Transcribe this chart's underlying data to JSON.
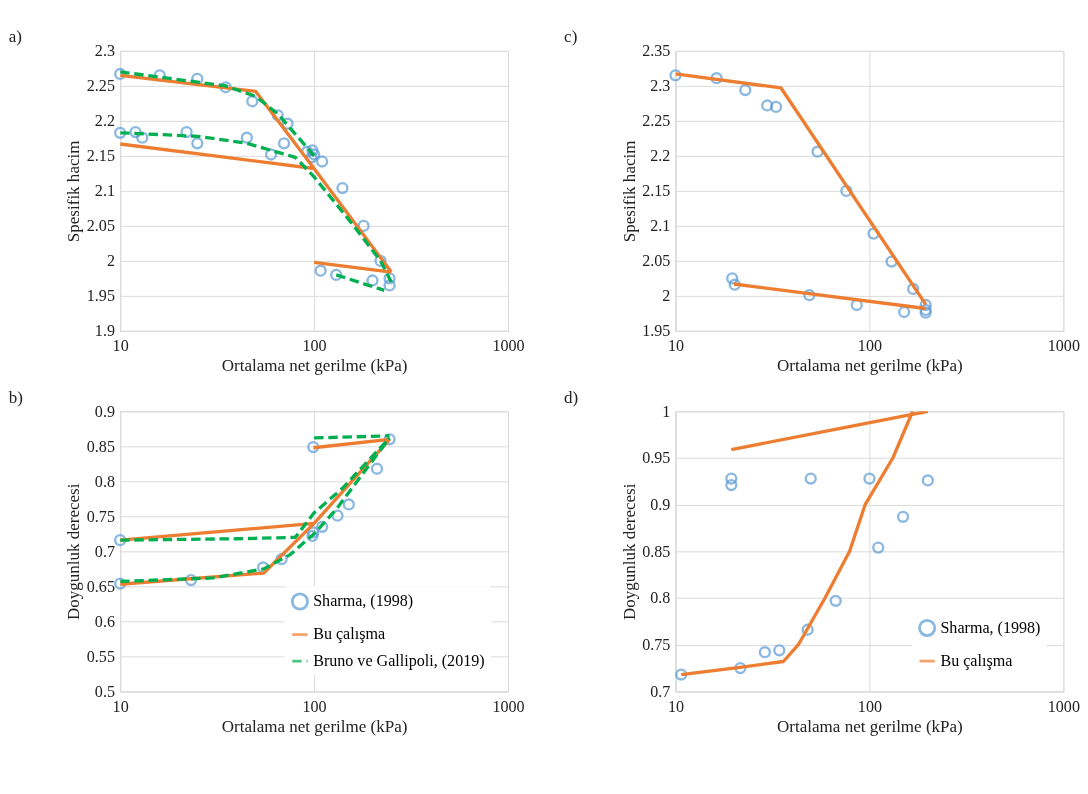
{
  "chart_data": [
    {
      "type": "scatter",
      "title": "a)",
      "xlabel": "Ortalama net gerilme (kPa)",
      "ylabel": "Spesifik hacim",
      "log": "x",
      "grid": true,
      "legend": false,
      "xlim": [
        10,
        1000
      ],
      "xticks": [
        10,
        100,
        1000
      ],
      "ylim": [
        1.9,
        2.3
      ],
      "yticks": [
        1.9,
        1.95,
        2,
        2.05,
        2.1,
        2.15,
        2.2,
        2.25,
        2.3
      ],
      "series": [
        {
          "type": "scatter",
          "marker": "circle",
          "color": "#5b9bd5",
          "x": [
            10,
            16,
            25,
            35,
            48,
            65,
            73,
            92,
            98,
            100,
            97,
            110,
            140,
            180,
            220,
            245,
            245,
            200,
            130,
            108,
            10,
            12,
            13,
            22,
            25,
            45,
            60,
            70
          ],
          "values": [
            2.267,
            2.265,
            2.26,
            2.248,
            2.228,
            2.208,
            2.196,
            2.156,
            2.158,
            2.152,
            2.148,
            2.142,
            2.104,
            2.05,
            2.0,
            1.975,
            1.965,
            1.972,
            1.98,
            1.986,
            2.183,
            2.184,
            2.176,
            2.184,
            2.168,
            2.176,
            2.152,
            2.168
          ]
        },
        {
          "type": "line",
          "marker": "none",
          "line_style": "solid",
          "color": "#ed7d31",
          "x": [
            10,
            50,
            100,
            250,
            null,
            10,
            100,
            null,
            100,
            250
          ],
          "values": [
            2.265,
            2.242,
            2.132,
            1.984,
            null,
            2.167,
            2.132,
            null,
            1.998,
            1.984
          ]
        },
        {
          "type": "line",
          "marker": "none",
          "line_style": "dashed",
          "color": "#00b050",
          "x": [
            10,
            35,
            50,
            65,
            75,
            90,
            100,
            null,
            10,
            25,
            45,
            80,
            100,
            150,
            220,
            250,
            null,
            130,
            230
          ],
          "values": [
            2.27,
            2.25,
            2.235,
            2.21,
            2.19,
            2.165,
            2.15,
            null,
            2.183,
            2.178,
            2.168,
            2.148,
            2.12,
            2.06,
            2.0,
            1.97,
            null,
            1.98,
            1.958
          ]
        }
      ]
    },
    {
      "type": "scatter",
      "title": "c)",
      "xlabel": "Ortalama net gerilme (kPa)",
      "ylabel": "Spesifik hacim",
      "log": "x",
      "grid": true,
      "legend": false,
      "xlim": [
        10,
        1000
      ],
      "xticks": [
        10,
        100,
        1000
      ],
      "ylim": [
        1.95,
        2.35
      ],
      "yticks": [
        1.95,
        2,
        2.05,
        2.1,
        2.15,
        2.2,
        2.25,
        2.3,
        2.35
      ],
      "series": [
        {
          "type": "scatter",
          "marker": "circle",
          "color": "#5b9bd5",
          "x": [
            10,
            16.3,
            22.9,
            29.7,
            33,
            54,
            76,
            105,
            130,
            168,
            195,
            195,
            195,
            151,
            86,
            49,
            19.6,
            20.2
          ],
          "values": [
            2.315,
            2.311,
            2.294,
            2.272,
            2.27,
            2.206,
            2.15,
            2.089,
            2.049,
            2.01,
            1.987,
            1.98,
            1.976,
            1.977,
            1.987,
            2.001,
            2.025,
            2.016
          ]
        },
        {
          "type": "line",
          "marker": "none",
          "line_style": "solid",
          "color": "#ed7d31",
          "x": [
            10,
            35,
            195,
            null,
            20,
            195
          ],
          "values": [
            2.317,
            2.297,
            1.988,
            null,
            2.017,
            1.982
          ]
        }
      ]
    },
    {
      "type": "scatter",
      "title": "b)",
      "xlabel": "Ortalama net gerilme (kPa)",
      "ylabel": "Doygunluk derecesi",
      "log": "x",
      "grid": true,
      "legend": "bottom right",
      "xlim": [
        10,
        1000
      ],
      "xticks": [
        10,
        100,
        1000
      ],
      "ylim": [
        0.5,
        0.9
      ],
      "yticks": [
        0.5,
        0.55,
        0.6,
        0.65,
        0.7,
        0.75,
        0.8,
        0.85,
        0.9
      ],
      "series": [
        {
          "name": "Sharma, (1998)",
          "type": "scatter",
          "marker": "circle",
          "color": "#5b9bd5",
          "x": [
            10,
            10,
            23.2,
            54.6,
            68,
            98,
            99,
            110,
            132,
            151,
            211,
            245,
            99
          ],
          "values": [
            0.716,
            0.654,
            0.659,
            0.677,
            0.689,
            0.722,
            0.727,
            0.735,
            0.751,
            0.767,
            0.818,
            0.86,
            0.849
          ]
        },
        {
          "name": "Bu çalışma",
          "type": "line",
          "marker": "none",
          "line_style": "solid",
          "color": "#ed7d31",
          "x": [
            10,
            100,
            245,
            null,
            10,
            55,
            100,
            null,
            99,
            245
          ],
          "values": [
            0.716,
            0.74,
            0.86,
            null,
            0.653,
            0.669,
            0.74,
            null,
            0.848,
            0.86
          ]
        },
        {
          "name": "Bruno ve Gallipoli, (2019)",
          "type": "line",
          "marker": "none",
          "line_style": "dashed",
          "color": "#00b050",
          "x": [
            10,
            40,
            80,
            100,
            140,
            245,
            null,
            10,
            30,
            55,
            75,
            100,
            130,
            245,
            null,
            100,
            245
          ],
          "values": [
            0.716,
            0.718,
            0.72,
            0.755,
            0.79,
            0.862,
            null,
            0.657,
            0.662,
            0.675,
            0.695,
            0.725,
            0.76,
            0.862,
            null,
            0.862,
            0.865
          ]
        }
      ]
    },
    {
      "type": "scatter",
      "title": "d)",
      "xlabel": "Ortalama net gerilme (kPa)",
      "ylabel": "Doygunluk derecesi",
      "log": "x",
      "grid": true,
      "legend": "bottom right",
      "xlim": [
        10,
        1000
      ],
      "xticks": [
        10,
        100,
        1000
      ],
      "ylim": [
        0.7,
        1
      ],
      "yticks": [
        0.7,
        0.75,
        0.8,
        0.85,
        0.9,
        0.95,
        1
      ],
      "series": [
        {
          "name": "Sharma, (1998)",
          "type": "scatter",
          "marker": "circle",
          "color": "#5b9bd5",
          "x": [
            19.4,
            19.4,
            49.8,
            100,
            200,
            149,
            111,
            67,
            48,
            28.9,
            34.3,
            21.6,
            10.7
          ],
          "values": [
            0.928,
            0.921,
            0.928,
            0.928,
            0.926,
            0.887,
            0.854,
            0.797,
            0.766,
            0.742,
            0.744,
            0.725,
            0.718
          ]
        },
        {
          "name": "Bu çalışma",
          "type": "line",
          "marker": "none",
          "line_style": "solid",
          "color": "#ed7d31",
          "x": [
            10.7,
            22,
            36,
            43,
            59,
            79,
            95,
            132,
            167,
            null,
            19.4,
            200
          ],
          "values": [
            0.718,
            0.726,
            0.732,
            0.75,
            0.8,
            0.85,
            0.9,
            0.95,
            1.0,
            null,
            0.959,
            1.0
          ]
        }
      ]
    }
  ]
}
